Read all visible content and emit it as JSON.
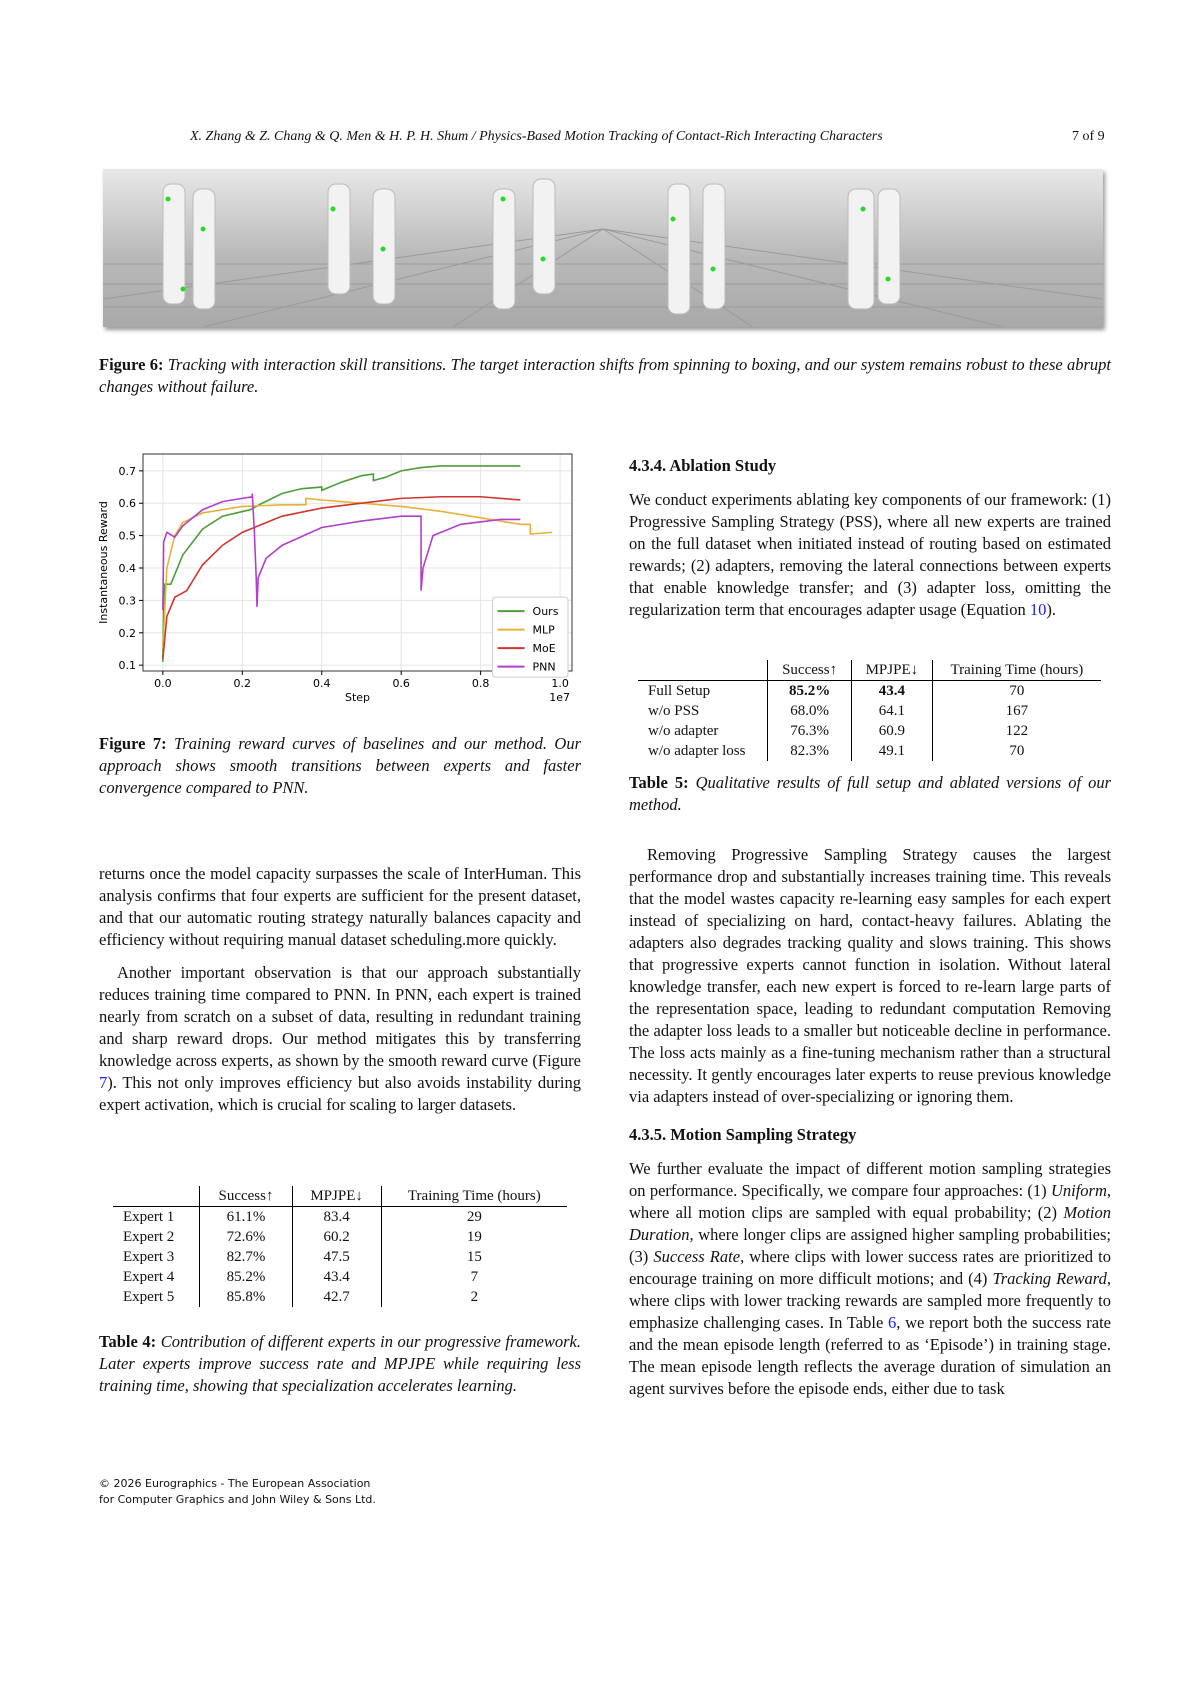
{
  "header": {
    "running_title": "X. Zhang & Z. Chang & Q. Men & H. P. H. Shum / Physics-Based Motion Tracking of Contact-Rich Interacting Characters",
    "page_number": "7 of 9"
  },
  "figure6": {
    "label": "Figure 6:",
    "caption": "Tracking with interaction skill transitions. The target interaction shifts from spinning to boxing, and our system remains robust to these abrupt changes without failure."
  },
  "figure7": {
    "label": "Figure 7:",
    "caption": "Training reward curves of baselines and our method. Our approach shows smooth transitions between experts and faster convergence compared to PNN."
  },
  "chart_data": {
    "type": "line",
    "xlabel": "Step",
    "ylabel": "Instantaneous Reward",
    "x_scale_label": "1e7",
    "xlim": [
      -0.05,
      1.03
    ],
    "ylim": [
      0.082,
      0.752
    ],
    "xticks": [
      "0.0",
      "0.2",
      "0.4",
      "0.6",
      "0.8",
      "1.0"
    ],
    "xtick_values": [
      0,
      0.2,
      0.4,
      0.6,
      0.8,
      1.0
    ],
    "yticks": [
      "0.1",
      "0.2",
      "0.3",
      "0.4",
      "0.5",
      "0.6",
      "0.7"
    ],
    "ytick_values": [
      0.1,
      0.2,
      0.3,
      0.4,
      0.5,
      0.6,
      0.7
    ],
    "grid": true,
    "legend": "bottom-right",
    "series": [
      {
        "name": "Ours",
        "color": "#4d9e3a",
        "points": [
          [
            0,
            0.11
          ],
          [
            0.002,
            0.3
          ],
          [
            0.005,
            0.35
          ],
          [
            0.02,
            0.35
          ],
          [
            0.05,
            0.44
          ],
          [
            0.1,
            0.52
          ],
          [
            0.15,
            0.56
          ],
          [
            0.22,
            0.58
          ],
          [
            0.25,
            0.6
          ],
          [
            0.3,
            0.63
          ],
          [
            0.35,
            0.645
          ],
          [
            0.4,
            0.65
          ],
          [
            0.4,
            0.64
          ],
          [
            0.45,
            0.665
          ],
          [
            0.5,
            0.685
          ],
          [
            0.53,
            0.69
          ],
          [
            0.53,
            0.67
          ],
          [
            0.56,
            0.68
          ],
          [
            0.6,
            0.7
          ],
          [
            0.65,
            0.71
          ],
          [
            0.7,
            0.715
          ],
          [
            0.8,
            0.715
          ],
          [
            0.9,
            0.715
          ]
        ]
      },
      {
        "name": "MLP",
        "color": "#e8b23a",
        "points": [
          [
            0,
            0.15
          ],
          [
            0.01,
            0.4
          ],
          [
            0.03,
            0.5
          ],
          [
            0.05,
            0.54
          ],
          [
            0.1,
            0.57
          ],
          [
            0.2,
            0.59
          ],
          [
            0.3,
            0.595
          ],
          [
            0.36,
            0.595
          ],
          [
            0.36,
            0.615
          ],
          [
            0.4,
            0.61
          ],
          [
            0.5,
            0.6
          ],
          [
            0.6,
            0.59
          ],
          [
            0.7,
            0.575
          ],
          [
            0.8,
            0.555
          ],
          [
            0.85,
            0.545
          ],
          [
            0.9,
            0.535
          ],
          [
            0.925,
            0.535
          ],
          [
            0.925,
            0.505
          ],
          [
            0.98,
            0.51
          ]
        ]
      },
      {
        "name": "MoE",
        "color": "#d0362f",
        "points": [
          [
            0,
            0.12
          ],
          [
            0.01,
            0.25
          ],
          [
            0.03,
            0.31
          ],
          [
            0.06,
            0.33
          ],
          [
            0.1,
            0.41
          ],
          [
            0.15,
            0.47
          ],
          [
            0.2,
            0.51
          ],
          [
            0.25,
            0.535
          ],
          [
            0.3,
            0.56
          ],
          [
            0.4,
            0.585
          ],
          [
            0.5,
            0.6
          ],
          [
            0.6,
            0.615
          ],
          [
            0.7,
            0.62
          ],
          [
            0.8,
            0.62
          ],
          [
            0.9,
            0.61
          ]
        ]
      },
      {
        "name": "PNN",
        "color": "#b23fcc",
        "points": [
          [
            0,
            0.27
          ],
          [
            0.002,
            0.48
          ],
          [
            0.01,
            0.51
          ],
          [
            0.03,
            0.495
          ],
          [
            0.05,
            0.53
          ],
          [
            0.1,
            0.58
          ],
          [
            0.15,
            0.605
          ],
          [
            0.225,
            0.62
          ],
          [
            0.225,
            0.63
          ],
          [
            0.23,
            0.52
          ],
          [
            0.235,
            0.37
          ],
          [
            0.237,
            0.28
          ],
          [
            0.24,
            0.37
          ],
          [
            0.26,
            0.43
          ],
          [
            0.3,
            0.47
          ],
          [
            0.4,
            0.525
          ],
          [
            0.5,
            0.545
          ],
          [
            0.6,
            0.56
          ],
          [
            0.65,
            0.56
          ],
          [
            0.65,
            0.33
          ],
          [
            0.655,
            0.4
          ],
          [
            0.68,
            0.5
          ],
          [
            0.75,
            0.535
          ],
          [
            0.85,
            0.55
          ],
          [
            0.9,
            0.55
          ]
        ]
      }
    ]
  },
  "left": {
    "para1": "returns once the model capacity surpasses the scale of InterHuman. This analysis confirms that four experts are sufficient for the present dataset, and that our automatic routing strategy naturally balances capacity and efficiency without requiring manual dataset scheduling.more quickly.",
    "para2_a": "Another important observation is that our approach substantially reduces training time compared to PNN. In PNN, each expert is trained nearly from scratch on a subset of data, resulting in redundant training and sharp reward drops. Our method mitigates this by transferring knowledge across experts, as shown by the smooth reward curve (Figure ",
    "para2_ref": "7",
    "para2_b": "). This not only improves efficiency but also avoids instability during expert activation, which is crucial for scaling to larger datasets."
  },
  "table4": {
    "headers": [
      "",
      "Success↑",
      "MPJPE↓",
      "Training Time (hours)"
    ],
    "rows": [
      [
        "Expert 1",
        "61.1%",
        "83.4",
        "29"
      ],
      [
        "Expert 2",
        "72.6%",
        "60.2",
        "19"
      ],
      [
        "Expert 3",
        "82.7%",
        "47.5",
        "15"
      ],
      [
        "Expert 4",
        "85.2%",
        "43.4",
        "7"
      ],
      [
        "Expert 5",
        "85.8%",
        "42.7",
        "2"
      ]
    ],
    "label": "Table 4:",
    "caption": "Contribution of different experts in our progressive framework. Later experts improve success rate and MPJPE while requiring less training time, showing that specialization accelerates learning."
  },
  "right": {
    "heading1": "4.3.4.  Ablation Study",
    "para1_a": "We conduct experiments ablating key components of our framework: (1) Progressive Sampling Strategy (PSS), where all new experts are trained on the full dataset when initiated instead of routing based on estimated rewards; (2) adapters, removing the lateral connections between experts that enable knowledge transfer; and (3) adapter loss, omitting the regularization term that encourages adapter usage (Equation ",
    "para1_ref": "10",
    "para1_b": ").",
    "para2": "Removing Progressive Sampling Strategy causes the largest performance drop and substantially increases training time. This reveals that the model wastes capacity re-learning easy samples for each expert instead of specializing on hard, contact-heavy failures. Ablating the adapters also degrades tracking quality and slows training. This shows that progressive experts cannot function in isolation. Without lateral knowledge transfer, each new expert is forced to re-learn large parts of the representation space, leading to redundant computation Removing the adapter loss leads to a smaller but noticeable decline in performance. The loss acts mainly as a fine-tuning mechanism rather than a structural necessity. It gently encourages later experts to reuse previous knowledge via adapters instead of over-specializing or ignoring them.",
    "heading2": "4.3.5.  Motion Sampling Strategy",
    "para3_a": "We further evaluate the impact of different motion sampling strategies on performance. Specifically, we compare four approaches: (1) ",
    "para3_uniform": "Uniform",
    "para3_b": ", where all motion clips are sampled with equal probability; (2) ",
    "para3_duration": "Motion Duration",
    "para3_c": ", where longer clips are assigned higher sampling probabilities; (3) ",
    "para3_success": "Success Rate",
    "para3_d": ", where clips with lower success rates are prioritized to encourage training on more difficult motions; and (4) ",
    "para3_tracking": "Tracking Reward",
    "para3_e": ", where clips with lower tracking rewards are sampled more frequently to emphasize challenging cases. In Table ",
    "para3_ref": "6",
    "para3_f": ", we report both the success rate and the mean episode length (referred to as ‘Episode’) in training stage. The mean episode length reflects the average duration of simulation an agent survives before the episode ends, either due to task"
  },
  "table5": {
    "headers": [
      "",
      "Success↑",
      "MPJPE↓",
      "Training Time (hours)"
    ],
    "rows": [
      [
        "Full Setup",
        "85.2%",
        "43.4",
        "70"
      ],
      [
        "w/o PSS",
        "68.0%",
        "64.1",
        "167"
      ],
      [
        "w/o adapter",
        "76.3%",
        "60.9",
        "122"
      ],
      [
        "w/o adapter loss",
        "82.3%",
        "49.1",
        "70"
      ]
    ],
    "label": "Table 5:",
    "caption": "Qualitative results of full setup and ablated versions of our method."
  },
  "footer": {
    "line1": "© 2026 Eurographics - The European Association",
    "line2": "for Computer Graphics and John Wiley & Sons Ltd."
  }
}
